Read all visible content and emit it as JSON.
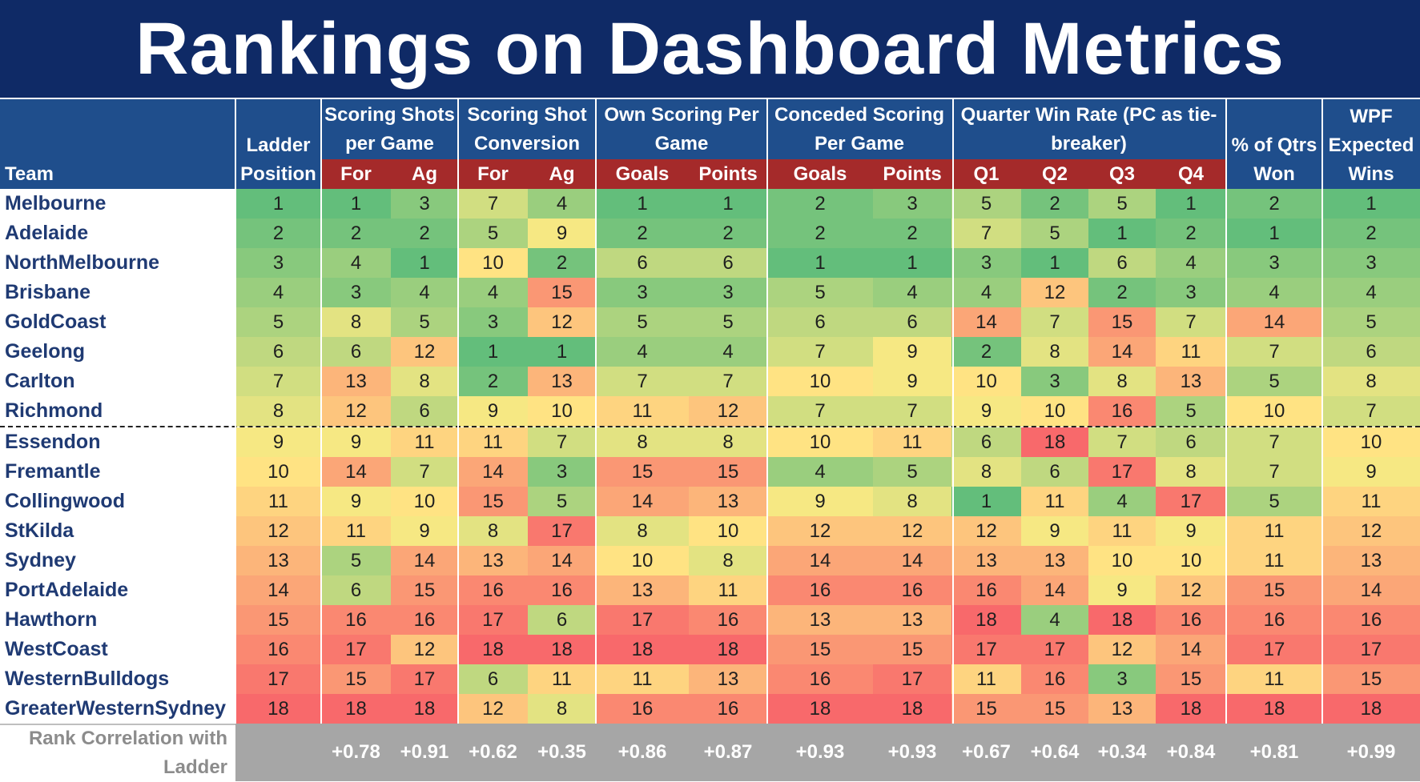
{
  "title": "Rankings on Dashboard Metrics",
  "chart_data": {
    "type": "table",
    "title": "Rankings on Dashboard Metrics",
    "header_groups": [
      {
        "label": "Team",
        "span": 1
      },
      {
        "label": "Ladder Position",
        "span": 1
      },
      {
        "label": "Scoring Shots per Game",
        "span": 2
      },
      {
        "label": "Scoring Shot Conversion",
        "span": 2
      },
      {
        "label": "Own Scoring Per Game",
        "span": 2
      },
      {
        "label": "Conceded Scoring Per Game",
        "span": 2
      },
      {
        "label": "Quarter Win Rate (PC as tie-breaker)",
        "span": 4
      },
      {
        "label": "% of Qtrs Won",
        "span": 1
      },
      {
        "label": "WPF Expected Wins",
        "span": 1
      }
    ],
    "subheaders": [
      "For",
      "Ag",
      "For",
      "Ag",
      "Goals",
      "Points",
      "Goals",
      "Points",
      "Q1",
      "Q2",
      "Q3",
      "Q4"
    ],
    "rows": [
      {
        "team": "Melbourne",
        "values": [
          1,
          1,
          3,
          7,
          4,
          1,
          1,
          2,
          3,
          5,
          2,
          5,
          1,
          2,
          1
        ]
      },
      {
        "team": "Adelaide",
        "values": [
          2,
          2,
          2,
          5,
          9,
          2,
          2,
          2,
          2,
          7,
          5,
          1,
          2,
          1,
          2
        ]
      },
      {
        "team": "NorthMelbourne",
        "values": [
          3,
          4,
          1,
          10,
          2,
          6,
          6,
          1,
          1,
          3,
          1,
          6,
          4,
          3,
          3
        ]
      },
      {
        "team": "Brisbane",
        "values": [
          4,
          3,
          4,
          4,
          15,
          3,
          3,
          5,
          4,
          4,
          12,
          2,
          3,
          4,
          4
        ]
      },
      {
        "team": "GoldCoast",
        "values": [
          5,
          8,
          5,
          3,
          12,
          5,
          5,
          6,
          6,
          14,
          7,
          15,
          7,
          14,
          5
        ]
      },
      {
        "team": "Geelong",
        "values": [
          6,
          6,
          12,
          1,
          1,
          4,
          4,
          7,
          9,
          2,
          8,
          14,
          11,
          7,
          6
        ]
      },
      {
        "team": "Carlton",
        "values": [
          7,
          13,
          8,
          2,
          13,
          7,
          7,
          10,
          9,
          10,
          3,
          8,
          13,
          5,
          8
        ]
      },
      {
        "team": "Richmond",
        "values": [
          8,
          12,
          6,
          9,
          10,
          11,
          12,
          7,
          7,
          9,
          10,
          16,
          5,
          10,
          7
        ]
      },
      {
        "team": "Essendon",
        "values": [
          9,
          9,
          11,
          11,
          7,
          8,
          8,
          10,
          11,
          6,
          18,
          7,
          6,
          7,
          10
        ]
      },
      {
        "team": "Fremantle",
        "values": [
          10,
          14,
          7,
          14,
          3,
          15,
          15,
          4,
          5,
          8,
          6,
          17,
          8,
          7,
          9
        ]
      },
      {
        "team": "Collingwood",
        "values": [
          11,
          9,
          10,
          15,
          5,
          14,
          13,
          9,
          8,
          1,
          11,
          4,
          17,
          5,
          11
        ]
      },
      {
        "team": "StKilda",
        "values": [
          12,
          11,
          9,
          8,
          17,
          8,
          10,
          12,
          12,
          12,
          9,
          11,
          9,
          11,
          12
        ]
      },
      {
        "team": "Sydney",
        "values": [
          13,
          5,
          14,
          13,
          14,
          10,
          8,
          14,
          14,
          13,
          13,
          10,
          10,
          11,
          13
        ]
      },
      {
        "team": "PortAdelaide",
        "values": [
          14,
          6,
          15,
          16,
          16,
          13,
          11,
          16,
          16,
          16,
          14,
          9,
          12,
          15,
          14
        ]
      },
      {
        "team": "Hawthorn",
        "values": [
          15,
          16,
          16,
          17,
          6,
          17,
          16,
          13,
          13,
          18,
          4,
          18,
          16,
          16,
          16
        ]
      },
      {
        "team": "WestCoast",
        "values": [
          16,
          17,
          12,
          18,
          18,
          18,
          18,
          15,
          15,
          17,
          17,
          12,
          14,
          17,
          17
        ]
      },
      {
        "team": "WesternBulldogs",
        "values": [
          17,
          15,
          17,
          6,
          11,
          11,
          13,
          16,
          17,
          11,
          16,
          3,
          15,
          11,
          15
        ]
      },
      {
        "team": "GreaterWesternSydney",
        "values": [
          18,
          18,
          18,
          12,
          8,
          16,
          16,
          18,
          18,
          15,
          15,
          13,
          18,
          18,
          18
        ]
      }
    ],
    "correlation_label": "Rank Correlation with Ladder",
    "correlations": [
      "",
      "+0.78",
      "+0.91",
      "+0.62",
      "+0.35",
      "+0.86",
      "+0.87",
      "+0.93",
      "+0.93",
      "+0.67",
      "+0.64",
      "+0.34",
      "+0.84",
      "+0.81",
      "+0.99"
    ],
    "divider_after_row": 8,
    "color_scale": {
      "low": "#63be7b",
      "mid": "#ffeb84",
      "high": "#f8696b",
      "min": 1,
      "max": 18
    }
  }
}
